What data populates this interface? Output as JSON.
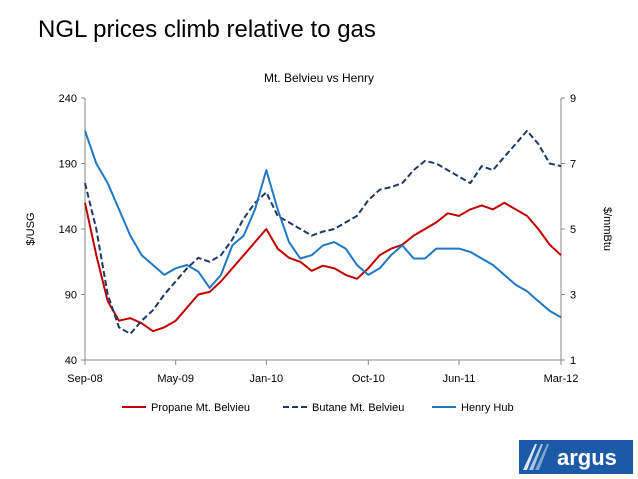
{
  "slide": {
    "title": "NGL prices climb relative to gas"
  },
  "logo": {
    "text": "argus",
    "icon": "argus-wave-icon"
  },
  "chart_data": {
    "type": "line",
    "title": "Mt. Belvieu vs Henry",
    "ylabel_left": "$/USG",
    "ylabel_right": "$/mmBtu",
    "ylim_left": [
      40,
      240
    ],
    "ylim_right": [
      1,
      9
    ],
    "yticks_left": [
      "40",
      "90",
      "140",
      "190",
      "240"
    ],
    "yticks_right": [
      "1",
      "3",
      "5",
      "7",
      "9"
    ],
    "xticks": [
      "Sep-08",
      "May-09",
      "Jan-10",
      "Oct-10",
      "Jun-11",
      "Mar-12"
    ],
    "xtick_dates": [
      "2008-09",
      "2009-05",
      "2010-01",
      "2010-10",
      "2011-06",
      "2012-03"
    ],
    "grid": false,
    "legend_position": "bottom",
    "series": [
      {
        "name": "Propane Mt. Belvieu",
        "axis": "left",
        "color": "#c00000",
        "dash": "solid",
        "x": [
          "2008-09",
          "2008-10",
          "2008-11",
          "2008-12",
          "2009-01",
          "2009-02",
          "2009-03",
          "2009-04",
          "2009-05",
          "2009-06",
          "2009-07",
          "2009-08",
          "2009-09",
          "2009-10",
          "2009-11",
          "2009-12",
          "2010-01",
          "2010-02",
          "2010-03",
          "2010-04",
          "2010-05",
          "2010-06",
          "2010-07",
          "2010-08",
          "2010-09",
          "2010-10",
          "2010-11",
          "2010-12",
          "2011-01",
          "2011-02",
          "2011-03",
          "2011-04",
          "2011-05",
          "2011-06",
          "2011-07",
          "2011-08",
          "2011-09",
          "2011-10",
          "2011-11",
          "2011-12",
          "2012-01",
          "2012-02",
          "2012-03"
        ],
        "y": [
          160,
          120,
          85,
          70,
          72,
          68,
          62,
          65,
          70,
          80,
          90,
          92,
          100,
          110,
          120,
          130,
          140,
          125,
          118,
          115,
          108,
          112,
          110,
          105,
          102,
          110,
          120,
          125,
          128,
          135,
          140,
          145,
          152,
          150,
          155,
          158,
          155,
          160,
          155,
          150,
          140,
          128,
          120
        ]
      },
      {
        "name": "Butane Mt. Belvieu",
        "axis": "left",
        "color": "#1f3864",
        "dash": "dashed",
        "x": [
          "2008-09",
          "2008-10",
          "2008-11",
          "2008-12",
          "2009-01",
          "2009-02",
          "2009-03",
          "2009-04",
          "2009-05",
          "2009-06",
          "2009-07",
          "2009-08",
          "2009-09",
          "2009-10",
          "2009-11",
          "2009-12",
          "2010-01",
          "2010-02",
          "2010-03",
          "2010-04",
          "2010-05",
          "2010-06",
          "2010-07",
          "2010-08",
          "2010-09",
          "2010-10",
          "2010-11",
          "2010-12",
          "2011-01",
          "2011-02",
          "2011-03",
          "2011-04",
          "2011-05",
          "2011-06",
          "2011-07",
          "2011-08",
          "2011-09",
          "2011-10",
          "2011-11",
          "2011-12",
          "2012-01",
          "2012-02",
          "2012-03"
        ],
        "y": [
          175,
          140,
          90,
          65,
          60,
          70,
          78,
          90,
          100,
          110,
          118,
          115,
          120,
          132,
          148,
          160,
          168,
          150,
          145,
          140,
          135,
          138,
          140,
          145,
          150,
          162,
          170,
          172,
          175,
          185,
          192,
          190,
          185,
          180,
          175,
          188,
          185,
          195,
          205,
          215,
          205,
          190,
          188
        ]
      },
      {
        "name": "Henry Hub",
        "axis": "right",
        "color": "#1f78c1",
        "dash": "solid",
        "x": [
          "2008-09",
          "2008-10",
          "2008-11",
          "2008-12",
          "2009-01",
          "2009-02",
          "2009-03",
          "2009-04",
          "2009-05",
          "2009-06",
          "2009-07",
          "2009-08",
          "2009-09",
          "2009-10",
          "2009-11",
          "2009-12",
          "2010-01",
          "2010-02",
          "2010-03",
          "2010-04",
          "2010-05",
          "2010-06",
          "2010-07",
          "2010-08",
          "2010-09",
          "2010-10",
          "2010-11",
          "2010-12",
          "2011-01",
          "2011-02",
          "2011-03",
          "2011-04",
          "2011-05",
          "2011-06",
          "2011-07",
          "2011-08",
          "2011-09",
          "2011-10",
          "2011-11",
          "2011-12",
          "2012-01",
          "2012-02",
          "2012-03"
        ],
        "y": [
          8.0,
          7.0,
          6.4,
          5.6,
          4.8,
          4.2,
          3.9,
          3.6,
          3.8,
          3.9,
          3.7,
          3.2,
          3.6,
          4.5,
          4.8,
          5.6,
          6.8,
          5.6,
          4.6,
          4.1,
          4.2,
          4.5,
          4.6,
          4.4,
          3.9,
          3.6,
          3.8,
          4.2,
          4.5,
          4.1,
          4.1,
          4.4,
          4.4,
          4.4,
          4.3,
          4.1,
          3.9,
          3.6,
          3.3,
          3.1,
          2.8,
          2.5,
          2.3
        ]
      }
    ]
  }
}
